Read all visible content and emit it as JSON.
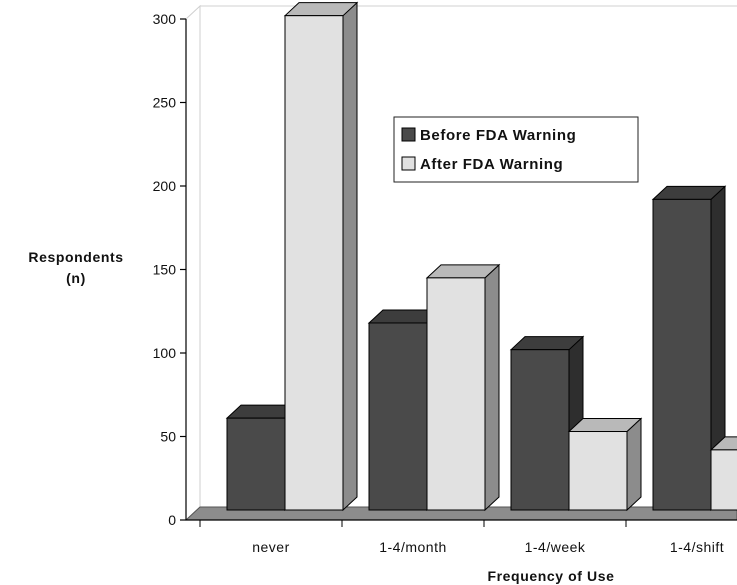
{
  "chart_data": {
    "type": "bar",
    "categories": [
      "never",
      "1-4/month",
      "1-4/week",
      "1-4/shift"
    ],
    "series": [
      {
        "name": "Before FDA Warning",
        "values": [
          55,
          112,
          96,
          186
        ],
        "color": "#4a4a4a"
      },
      {
        "name": "After FDA Warning",
        "values": [
          296,
          139,
          47,
          36
        ],
        "color": "#e1e1e1"
      }
    ],
    "yticks": [
      0,
      50,
      100,
      150,
      200,
      250,
      300
    ],
    "ylim": [
      0,
      300
    ],
    "ylabel": [
      "Respondents",
      "(n)"
    ],
    "xlabel": "Frequency of Use",
    "legend_position": "upper-middle",
    "grid": false,
    "style": "3d-clustered-bar"
  }
}
